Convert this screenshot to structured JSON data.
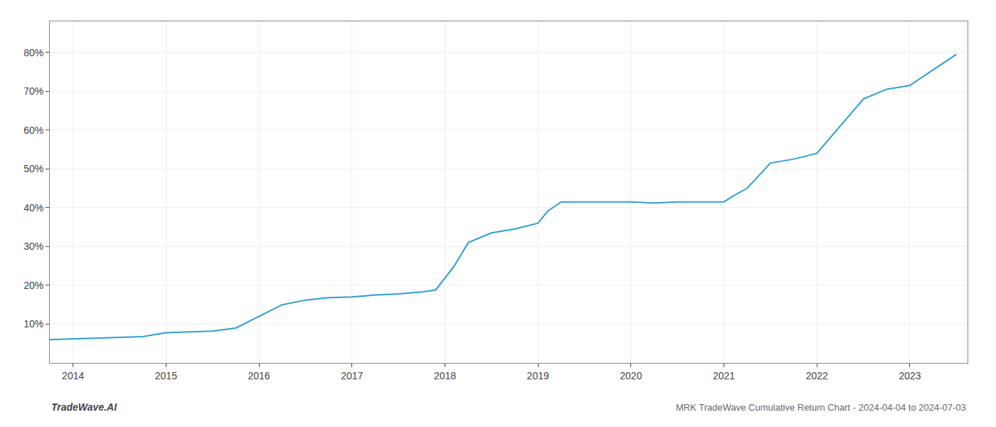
{
  "chart_data": {
    "type": "line",
    "title": "MRK TradeWave Cumulative Return Chart - 2024-04-04 to 2024-07-03",
    "annotations": [
      "TradeWave.AI"
    ],
    "x": [
      2013.75,
      2014.0,
      2014.25,
      2014.5,
      2014.75,
      2015.0,
      2015.25,
      2015.5,
      2015.75,
      2016.0,
      2016.25,
      2016.5,
      2016.75,
      2017.0,
      2017.25,
      2017.5,
      2017.75,
      2017.9,
      2018.1,
      2018.25,
      2018.5,
      2018.75,
      2019.0,
      2019.1,
      2019.25,
      2019.5,
      2019.75,
      2020.0,
      2020.25,
      2020.5,
      2020.75,
      2021.0,
      2021.1,
      2021.25,
      2021.5,
      2021.75,
      2022.0,
      2022.25,
      2022.5,
      2022.75,
      2023.0,
      2023.25,
      2023.5
    ],
    "values": [
      6.0,
      6.2,
      6.4,
      6.5,
      6.8,
      7.8,
      8.0,
      8.2,
      9.0,
      12.0,
      15.0,
      16.2,
      16.8,
      17.0,
      17.5,
      17.8,
      18.3,
      18.8,
      25.0,
      31.0,
      33.5,
      34.5,
      36.0,
      39.0,
      41.5,
      41.5,
      41.5,
      41.5,
      41.2,
      41.5,
      41.5,
      41.5,
      43.0,
      45.0,
      51.5,
      52.5,
      54.0,
      61.0,
      68.0,
      70.5,
      71.5,
      75.5,
      79.5
    ],
    "color": "#2b9fd4",
    "xlim": [
      2013.75,
      2023.62
    ],
    "ylim": [
      0,
      88
    ],
    "xticks": [
      2014,
      2015,
      2016,
      2017,
      2018,
      2019,
      2020,
      2021,
      2022,
      2023
    ],
    "yticks": [
      {
        "value": 10,
        "label": "10%"
      },
      {
        "value": 20,
        "label": "20%"
      },
      {
        "value": 30,
        "label": "30%"
      },
      {
        "value": 40,
        "label": "40%"
      },
      {
        "value": 50,
        "label": "50%"
      },
      {
        "value": 60,
        "label": "60%"
      },
      {
        "value": 70,
        "label": "70%"
      },
      {
        "value": 80,
        "label": "80%"
      }
    ],
    "grid": true
  }
}
